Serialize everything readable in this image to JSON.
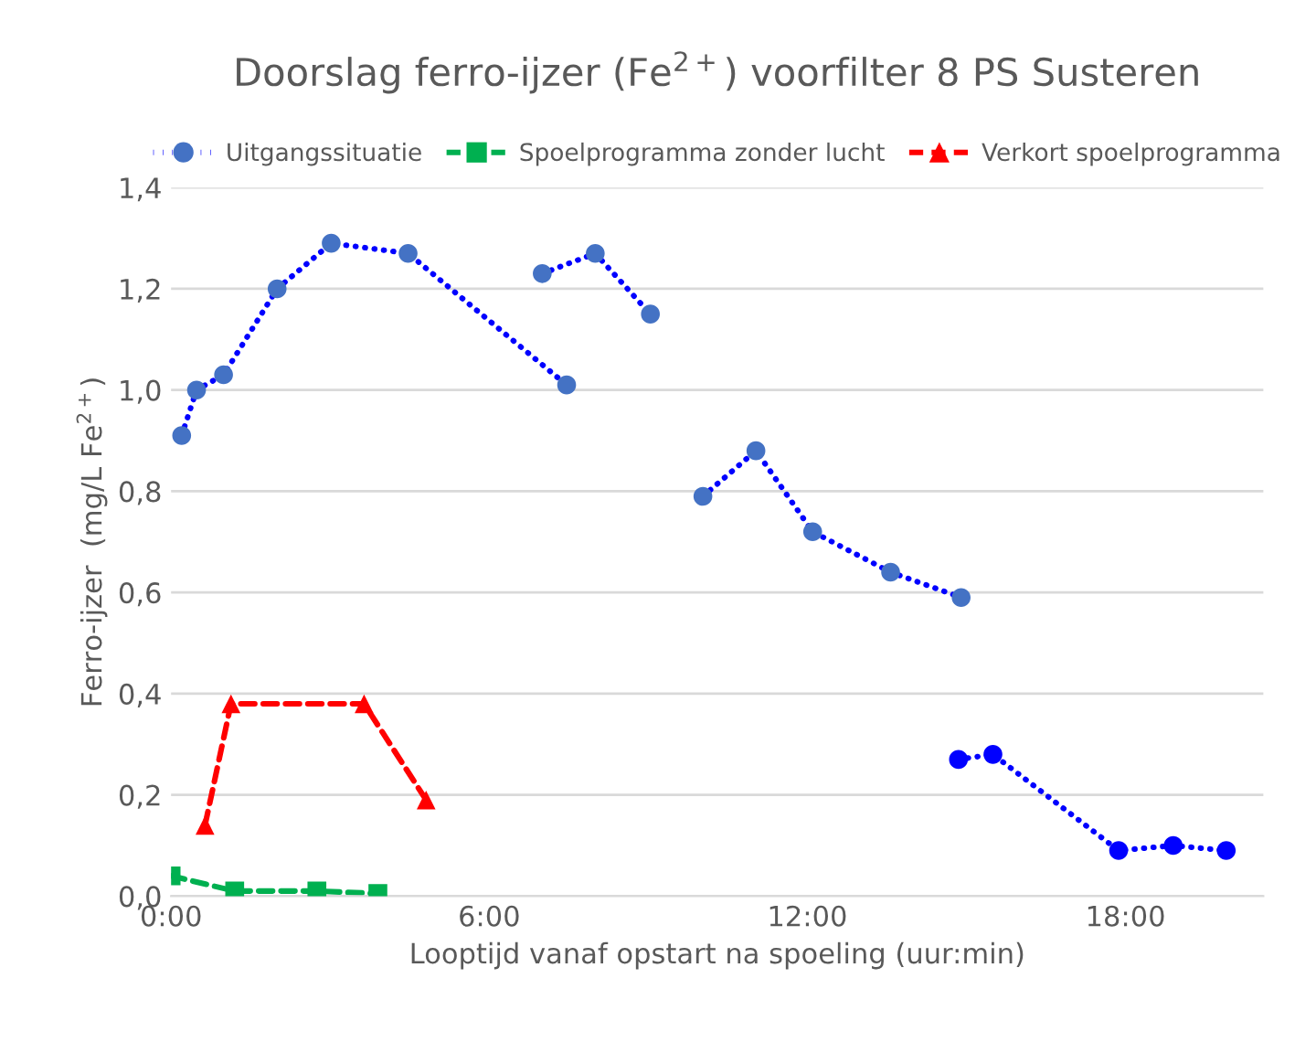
{
  "chart_data": {
    "type": "line",
    "title": "Doorslag ferro-ijzer (Fe$^{2+}$) voorfilter 8 PS Susteren",
    "xlabel": "Looptijd vanaf opstart na spoeling (uur:min)",
    "ylabel": "Ferro-ijzer  (mg/L Fe$^{2+}$)",
    "xlim": [
      0,
      20.6
    ],
    "xticks": [
      {
        "value": 0,
        "label": "0:00"
      },
      {
        "value": 6,
        "label": "6:00"
      },
      {
        "value": 12,
        "label": "12:00"
      },
      {
        "value": 18,
        "label": "18:00"
      }
    ],
    "ylim": [
      0,
      1.4
    ],
    "yticks": [
      {
        "value": 0,
        "label": "0,0"
      },
      {
        "value": 0.2,
        "label": "0,2"
      },
      {
        "value": 0.4,
        "label": "0,4"
      },
      {
        "value": 0.6,
        "label": "0,6"
      },
      {
        "value": 0.8,
        "label": "0,8"
      },
      {
        "value": 1.0,
        "label": "1,0"
      },
      {
        "value": 1.2,
        "label": "1,2"
      },
      {
        "value": 1.4,
        "label": "1,4"
      }
    ],
    "grid": "y",
    "legend": "top",
    "series": [
      {
        "name": "Uitgangssituatie",
        "color": "#0000ff",
        "marker": "circle",
        "line_style": "dotted",
        "x": [
          0.2,
          0.48,
          0.99,
          2.0,
          3.02,
          4.47,
          7.46,
          null,
          7.0,
          8.0,
          9.04,
          null,
          10.03,
          11.03,
          12.1,
          13.57,
          14.9,
          null,
          14.85,
          15.5,
          17.87,
          18.9,
          19.9
        ],
        "values": [
          0.91,
          1.0,
          1.03,
          1.2,
          1.29,
          1.27,
          1.01,
          null,
          1.23,
          1.27,
          1.15,
          null,
          0.79,
          0.88,
          0.72,
          0.64,
          0.59,
          null,
          0.27,
          0.28,
          0.09,
          0.1,
          0.09
        ],
        "colors": [
          "#4472c4",
          "#4472c4",
          "#4472c4",
          "#4472c4",
          "#4472c4",
          "#4472c4",
          "#4472c4",
          null,
          "#4472c4",
          "#4472c4",
          "#4472c4",
          null,
          "#4472c4",
          "#4472c4",
          "#4472c4",
          "#4472c4",
          "#4472c4",
          null,
          "#0000ff",
          "#0000ff",
          "#0000ff",
          "#0000ff",
          "#0000ff"
        ]
      },
      {
        "name": "Spoelprogramma zonder lucht",
        "color": "#00b050",
        "marker": "square",
        "line_style": "dashed",
        "x": [
          0.0,
          1.2,
          2.75,
          3.9
        ],
        "values": [
          0.04,
          0.01,
          0.01,
          0.005
        ]
      },
      {
        "name": "Verkort spoelprogramma",
        "color": "#ff0000",
        "marker": "triangle",
        "line_style": "dashed",
        "x": [
          0.64,
          1.13,
          3.64,
          4.81
        ],
        "values": [
          0.14,
          0.38,
          0.38,
          0.19
        ]
      }
    ]
  }
}
